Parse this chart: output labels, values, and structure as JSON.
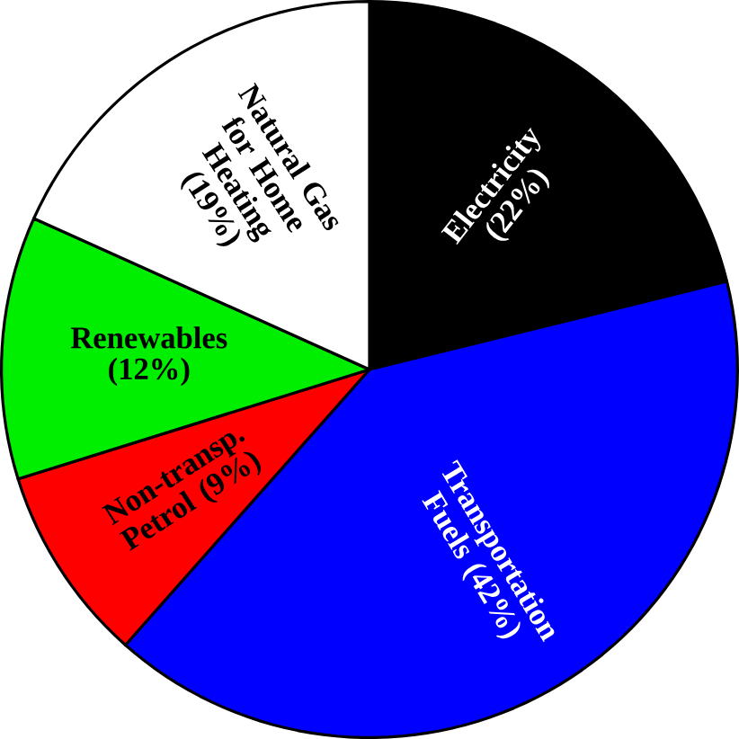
{
  "chart_data": {
    "type": "pie",
    "categories": [
      "Electricity",
      "Transportation Fuels",
      "Non-transp. Petrol",
      "Renewables",
      "Natural Gas for Home Heating"
    ],
    "values": [
      22,
      42,
      9,
      12,
      19
    ],
    "value_labels": [
      "(22%)",
      "(42%)",
      "(9%)",
      "(12%)",
      "(19%)"
    ],
    "colors": [
      "#000000",
      "#0000ff",
      "#ff0000",
      "#00ee00",
      "#ffffff"
    ]
  }
}
